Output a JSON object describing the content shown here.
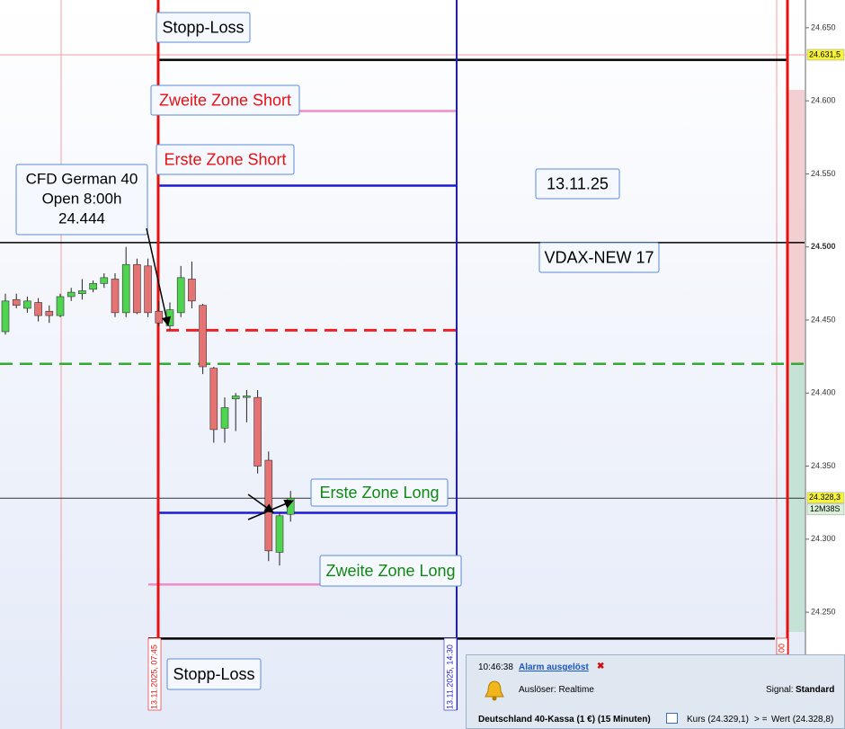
{
  "chart_data": {
    "type": "candlestick",
    "open": [
      24442,
      24464,
      24458,
      24462,
      24456,
      24453,
      24466,
      24468,
      24471,
      24475,
      24478,
      24455,
      24488,
      24487,
      24456,
      24446,
      24455,
      24478,
      24460,
      24417,
      24376,
      24396,
      24397,
      24397,
      24354,
      24291,
      24317
    ],
    "high": [
      24468,
      24468,
      24466,
      24465,
      24460,
      24468,
      24472,
      24478,
      24477,
      24482,
      24482,
      24500,
      24492,
      24492,
      24463,
      24462,
      24487,
      24490,
      24461,
      24418,
      24397,
      24400,
      24402,
      24402,
      24360,
      24318,
      24333
    ],
    "low": [
      24440,
      24458,
      24455,
      24449,
      24448,
      24452,
      24463,
      24464,
      24469,
      24472,
      24452,
      24452,
      24454,
      24452,
      24446,
      24443,
      24452,
      24458,
      24413,
      24366,
      24366,
      24374,
      24380,
      24345,
      24285,
      24282,
      24312
    ],
    "close": [
      24463,
      24460,
      24463,
      24453,
      24453,
      24466,
      24469,
      24470,
      24475,
      24479,
      24455,
      24488,
      24455,
      24455,
      24448,
      24457,
      24479,
      24463,
      24418,
      24375,
      24390,
      24398,
      24398,
      24350,
      24292,
      24316,
      24328
    ],
    "up_color": "#4fd44f",
    "down_color": "#e57373",
    "ylim": [
      24183,
      24669
    ],
    "yticks": [
      {
        "value": 24250,
        "label": "24.250"
      },
      {
        "value": 24300,
        "label": "24.300"
      },
      {
        "value": 24350,
        "label": "24.350"
      },
      {
        "value": 24400,
        "label": "24.400"
      },
      {
        "value": 24450,
        "label": "24.450"
      },
      {
        "value": 24500,
        "label": "24.500"
      },
      {
        "value": 24550,
        "label": "24.550"
      },
      {
        "value": 24600,
        "label": "24.600"
      },
      {
        "value": 24650,
        "label": "24.650"
      }
    ],
    "levels": [
      {
        "value": 24628,
        "color": "#000000",
        "width": 2.5,
        "dash": false
      },
      {
        "value": 24593,
        "color": "#f08cc8",
        "width": 2.5,
        "dash": false
      },
      {
        "value": 24542,
        "color": "#1a1ad8",
        "width": 2.5,
        "dash": false
      },
      {
        "value": 24503,
        "color": "#000000",
        "width": 1.5,
        "dash": false
      },
      {
        "value": 24443,
        "color": "#ee2222",
        "width": 3,
        "dash": true
      },
      {
        "value": 24420,
        "color": "#33aa33",
        "width": 2.5,
        "dash": true
      },
      {
        "value": 24328,
        "color": "#333333",
        "width": 1,
        "dash": false
      },
      {
        "value": 24318,
        "color": "#1a1ad8",
        "width": 2.5,
        "dash": false
      },
      {
        "value": 24269,
        "color": "#f08cc8",
        "width": 2.5,
        "dash": false
      },
      {
        "value": 24232,
        "color": "#000000",
        "width": 2.5,
        "dash": false
      },
      {
        "value": 24631.5,
        "color": "#f4a0a0",
        "width": 1,
        "dash": false
      }
    ],
    "price_tags": [
      {
        "value": 24631.5,
        "label": "24.631,5"
      },
      {
        "value": 24328.3,
        "label": "24.328,3"
      }
    ],
    "timer": "12M38S",
    "time_markers": [
      "13.11.2025, 07:45",
      "13.11.2025, 14:30",
      "00"
    ],
    "annotations": [
      {
        "text": "Stopp-Loss",
        "color": "#000000"
      },
      {
        "text": "Zweite Zone Short",
        "color": "#e81010"
      },
      {
        "text": "Erste Zone Short",
        "color": "#e81010"
      },
      {
        "text": "13.11.25",
        "color": "#000000"
      },
      {
        "text": "VDAX-NEW 17",
        "color": "#000000"
      },
      {
        "text": "Erste Zone Long",
        "color": "#118811"
      },
      {
        "text": "Zweite Zone Long",
        "color": "#118811"
      },
      {
        "text": "Stopp-Loss",
        "color": "#000000"
      }
    ],
    "open_note": [
      "CFD German 40",
      "Open 8:00h",
      "24.444"
    ]
  },
  "alert": {
    "time": "10:46:38",
    "title": "Alarm ausgelöst",
    "trigger": "Auslöser: Realtime",
    "signal_label": "Signal:",
    "signal": "Standard",
    "instrument": "Deutschland 40-Kassa (1 €) (15 Minuten)",
    "price": "Kurs (24.329,1)",
    "op": "> =",
    "value": "Wert (24.328,8)"
  }
}
